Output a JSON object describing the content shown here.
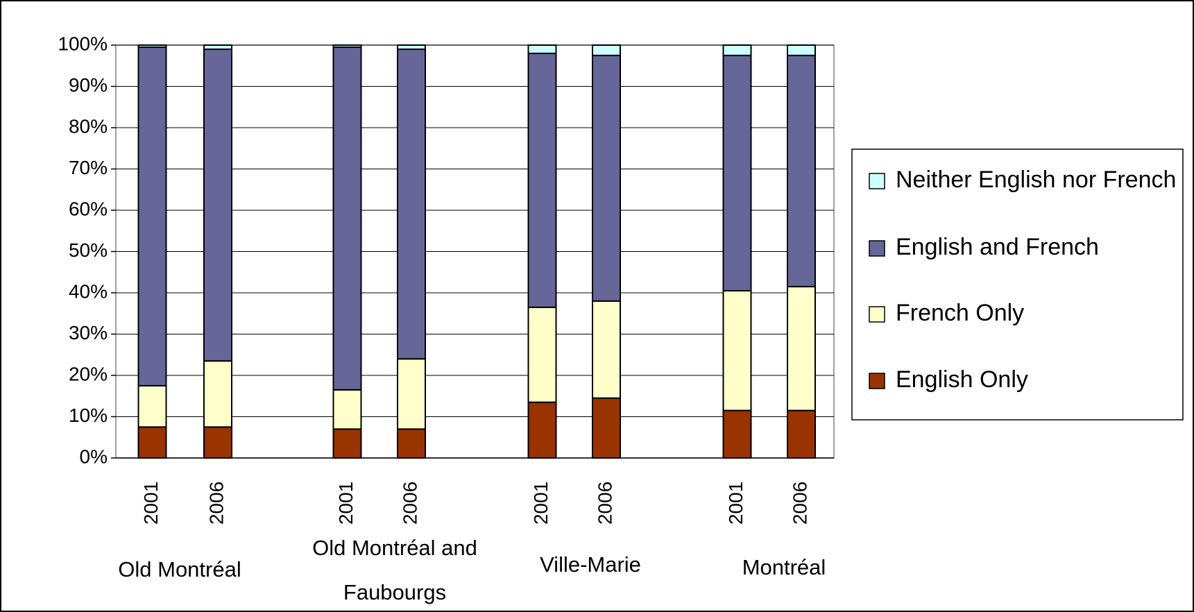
{
  "chart_data": {
    "type": "bar",
    "stacked": true,
    "categories": [
      "2001",
      "2006",
      "2001",
      "2006",
      "2001",
      "2006",
      "2001",
      "2006"
    ],
    "groups": [
      "Old Montréal",
      "Old Montréal and Faubourgs",
      "Ville-Marie",
      "Montréal"
    ],
    "series": [
      {
        "name": "English Only",
        "color": "#993300",
        "values": [
          7.5,
          7.5,
          7,
          7,
          13.5,
          14.5,
          11.5,
          11.5
        ]
      },
      {
        "name": "French Only",
        "color": "#ffffcc",
        "values": [
          10,
          16,
          9.5,
          17,
          23,
          23.5,
          29,
          30
        ]
      },
      {
        "name": "English and French",
        "color": "#666699",
        "values": [
          82,
          75.5,
          83,
          75,
          61.5,
          59.5,
          57,
          56
        ]
      },
      {
        "name": "Neither English nor French",
        "color": "#ccffff",
        "values": [
          0.5,
          1,
          0.5,
          1,
          2,
          2.5,
          2.5,
          2.5
        ]
      }
    ],
    "ylim": [
      0,
      100
    ],
    "yticks": [
      {
        "value": 0,
        "label": "0%"
      },
      {
        "value": 10,
        "label": "10%"
      },
      {
        "value": 20,
        "label": "20%"
      },
      {
        "value": 30,
        "label": "30%"
      },
      {
        "value": 40,
        "label": "40%"
      },
      {
        "value": 50,
        "label": "50%"
      },
      {
        "value": 60,
        "label": "60%"
      },
      {
        "value": 70,
        "label": "70%"
      },
      {
        "value": 80,
        "label": "80%"
      },
      {
        "value": 90,
        "label": "90%"
      },
      {
        "value": 100,
        "label": "100%"
      }
    ],
    "grid": true,
    "legend": "right"
  }
}
